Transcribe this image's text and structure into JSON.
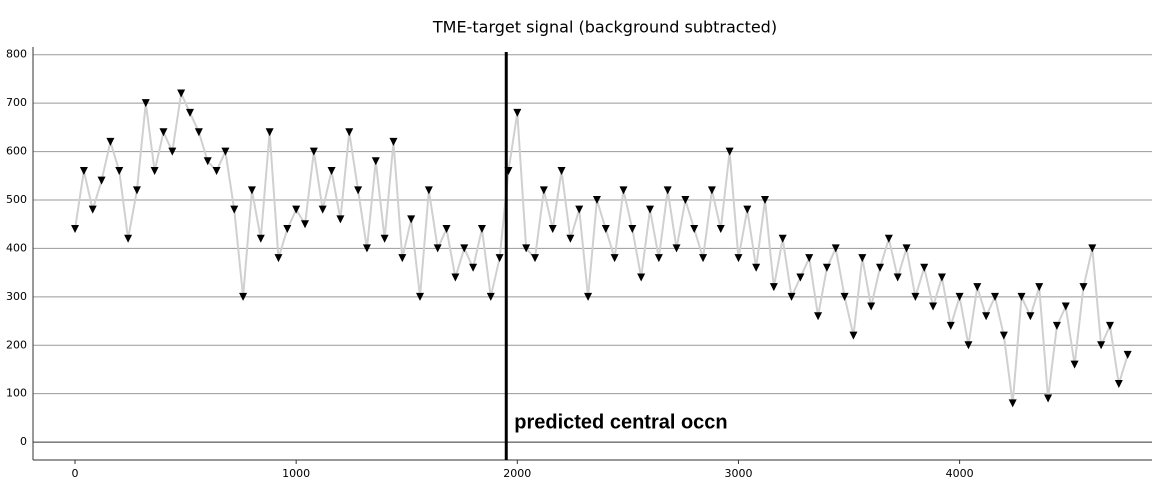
{
  "chart_data": {
    "type": "line",
    "title": "TME-target signal (background subtracted)",
    "x": [
      0,
      40,
      80,
      120,
      160,
      200,
      240,
      280,
      320,
      360,
      400,
      440,
      480,
      520,
      560,
      600,
      640,
      680,
      720,
      760,
      800,
      840,
      880,
      920,
      960,
      1000,
      1040,
      1080,
      1120,
      1160,
      1200,
      1240,
      1280,
      1320,
      1360,
      1400,
      1440,
      1480,
      1520,
      1560,
      1600,
      1640,
      1680,
      1720,
      1760,
      1800,
      1840,
      1880,
      1920,
      1960,
      2000,
      2040,
      2080,
      2120,
      2160,
      2200,
      2240,
      2280,
      2320,
      2360,
      2400,
      2440,
      2480,
      2520,
      2560,
      2600,
      2640,
      2680,
      2720,
      2760,
      2800,
      2840,
      2880,
      2920,
      2960,
      3000,
      3040,
      3080,
      3120,
      3160,
      3200,
      3240,
      3280,
      3320,
      3360,
      3400,
      3440,
      3480,
      3520,
      3560,
      3600,
      3640,
      3680,
      3720,
      3760,
      3800,
      3840,
      3880,
      3920,
      3960,
      4000,
      4040,
      4080,
      4120,
      4160,
      4200,
      4240,
      4280,
      4320,
      4360,
      4400,
      4440,
      4480,
      4520,
      4560,
      4600,
      4640,
      4680,
      4720,
      4760
    ],
    "series": [
      {
        "color": "#000000",
        "line_color": "#d0d0d0",
        "values": [
          440,
          560,
          480,
          540,
          620,
          560,
          420,
          520,
          700,
          560,
          640,
          600,
          720,
          680,
          640,
          580,
          560,
          600,
          480,
          300,
          520,
          420,
          640,
          380,
          440,
          480,
          450,
          600,
          480,
          560,
          460,
          640,
          520,
          400,
          580,
          420,
          620,
          380,
          460,
          300,
          520,
          400,
          440,
          340,
          400,
          360,
          440,
          300,
          380,
          560,
          680,
          400,
          380,
          520,
          440,
          560,
          420,
          480,
          300,
          500,
          440,
          380,
          520,
          440,
          340,
          480,
          380,
          520,
          400,
          500,
          440,
          380,
          520,
          440,
          600,
          380,
          480,
          360,
          500,
          320,
          420,
          300,
          340,
          380,
          260,
          360,
          400,
          300,
          220,
          380,
          280,
          360,
          420,
          340,
          400,
          300,
          360,
          280,
          340,
          240,
          300,
          200,
          320,
          260,
          300,
          220,
          80,
          300,
          260,
          320,
          90,
          240,
          280,
          160,
          320,
          400,
          200,
          240,
          120,
          180
        ]
      }
    ],
    "xlim": [
      -190,
      4870
    ],
    "ylim": [
      -37,
      816
    ],
    "xticks": [
      0,
      1000,
      2000,
      3000,
      4000
    ],
    "yticks": [
      0,
      100,
      200,
      300,
      400,
      500,
      600,
      700,
      800
    ],
    "grid": true,
    "vline": 1950,
    "annotation": "predicted central occn"
  }
}
